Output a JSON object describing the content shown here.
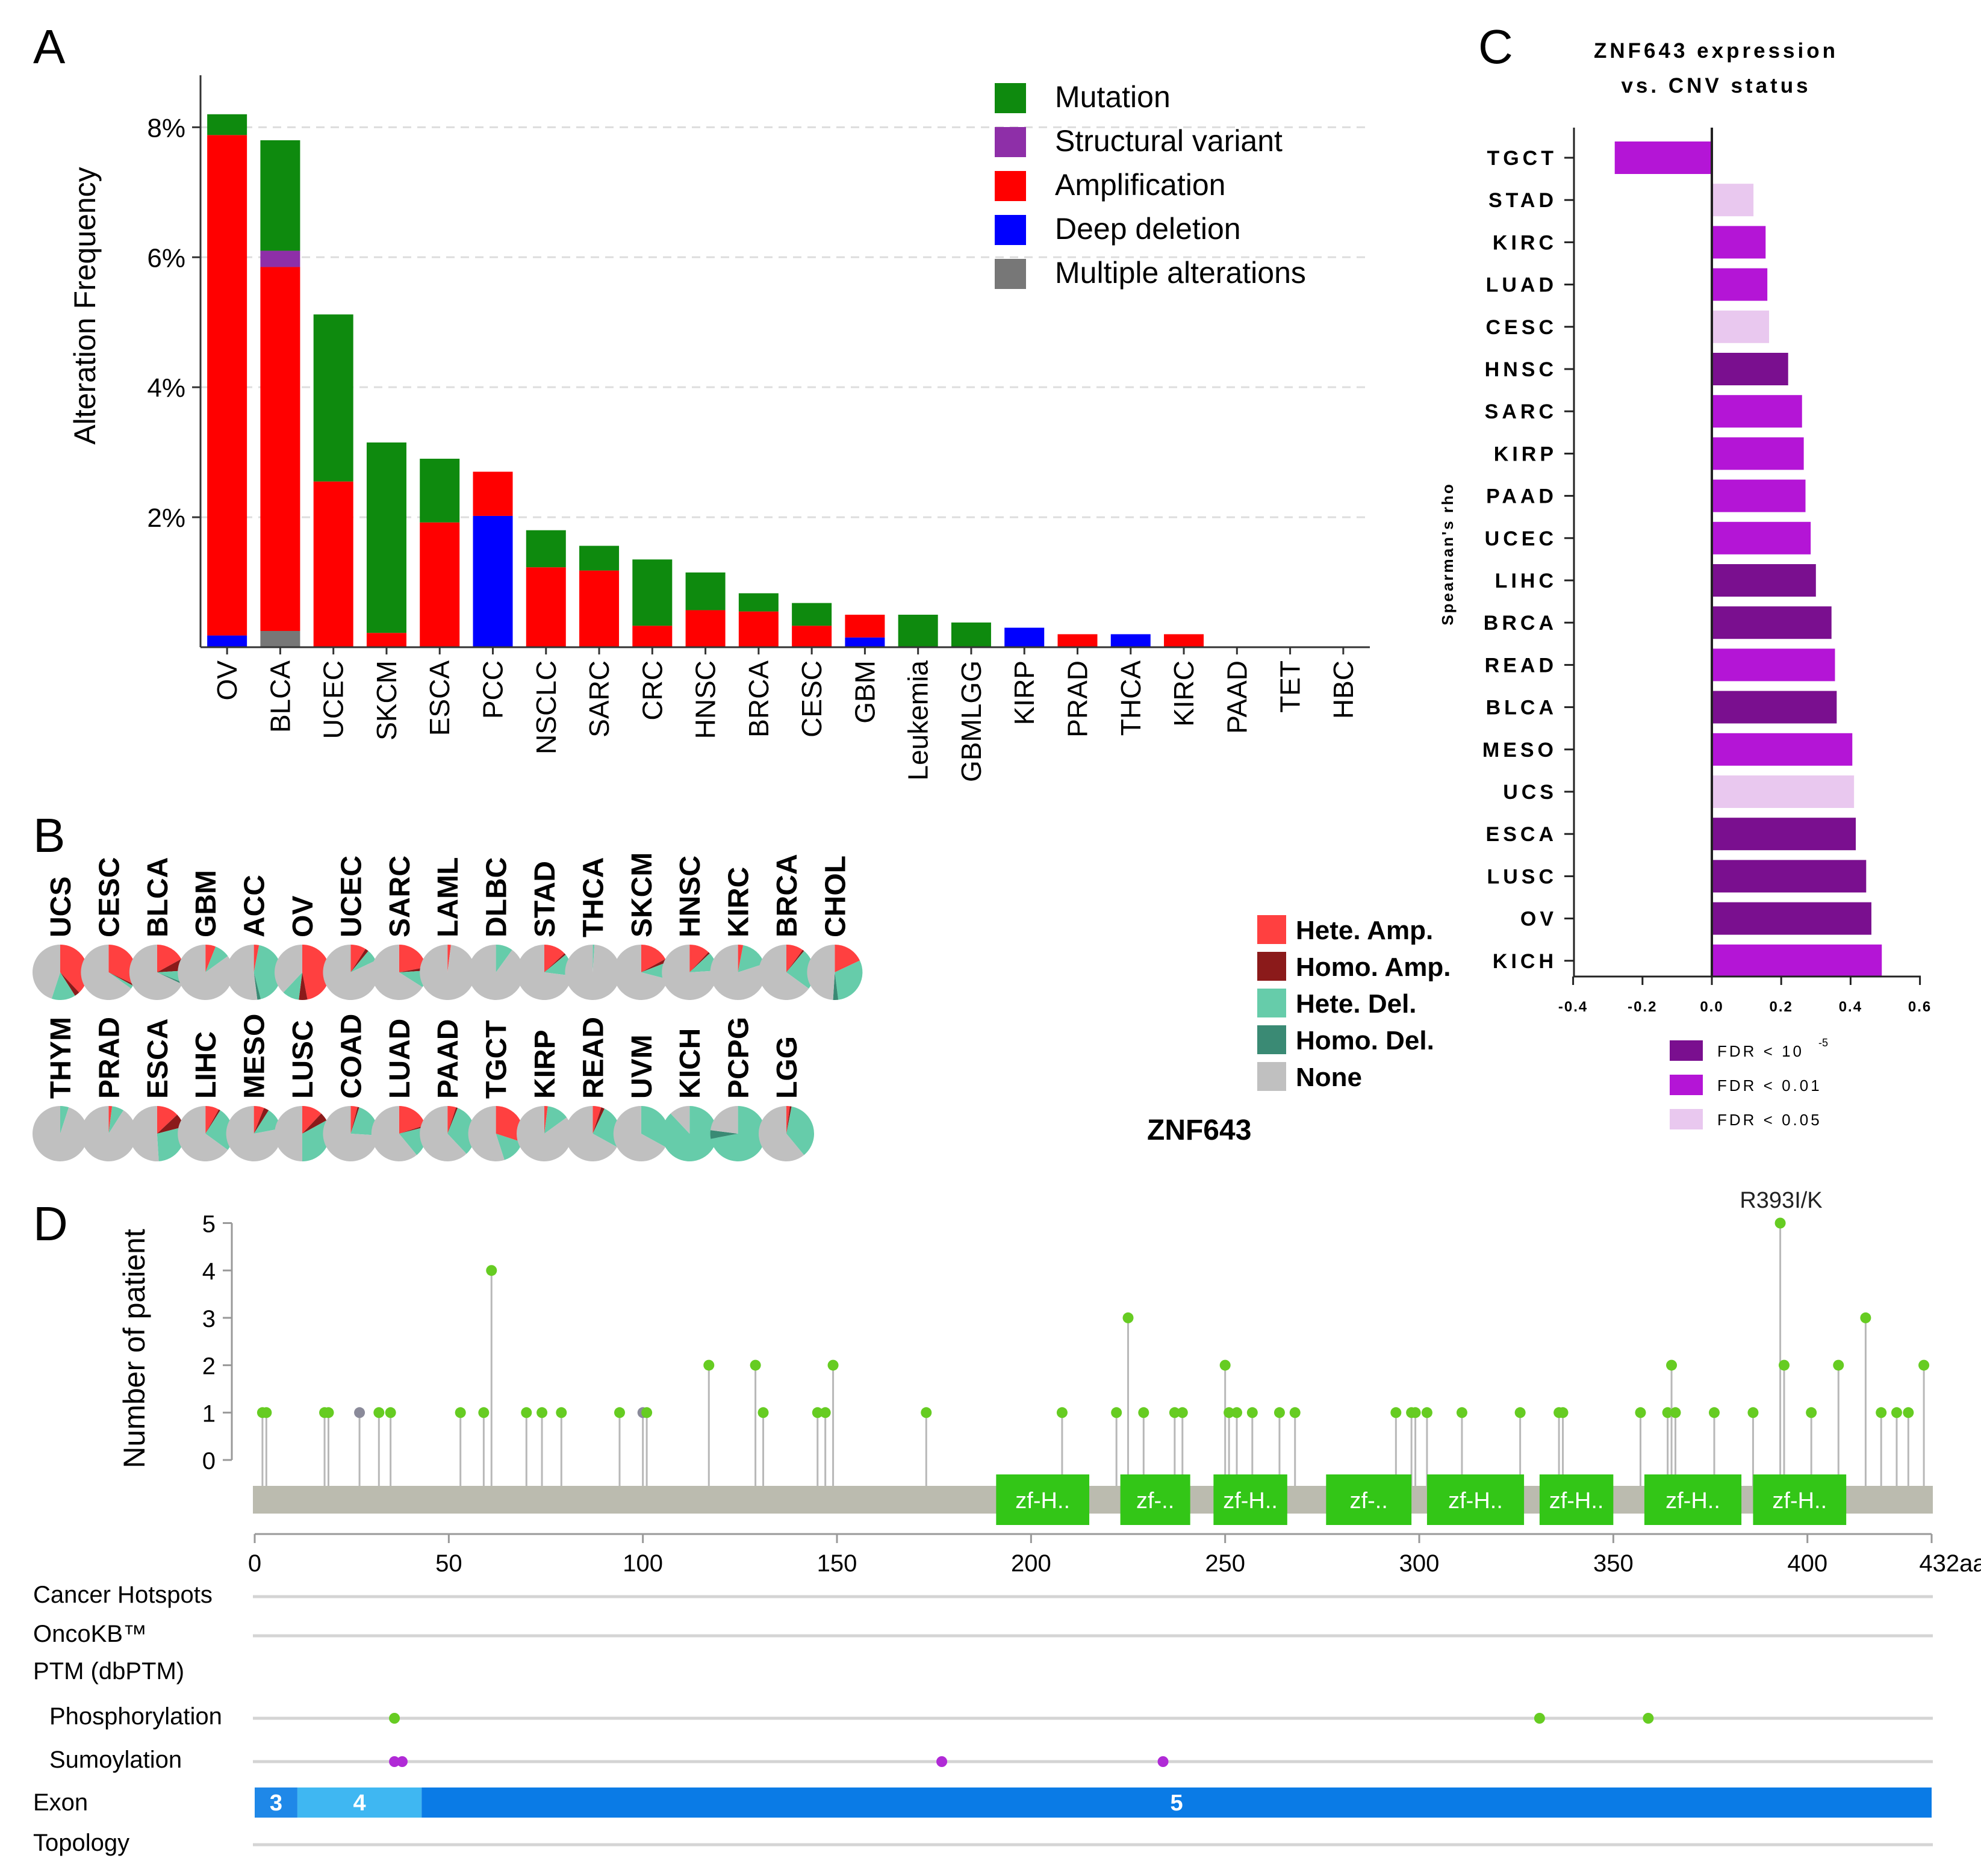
{
  "panel_letters": [
    "A",
    "B",
    "C",
    "D"
  ],
  "chart_data": [
    {
      "type": "bar",
      "panel": "A",
      "stacked": true,
      "ylabel": "Alteration Frequency",
      "yticks": [
        "2%",
        "4%",
        "6%",
        "8%"
      ],
      "ylim": [
        0,
        8.8
      ],
      "categories": [
        "OV",
        "BLCA",
        "UCEC",
        "SKCM",
        "ESCA",
        "PCC",
        "NSCLC",
        "SARC",
        "CRC",
        "HNSC",
        "BRCA",
        "CESC",
        "GBM",
        "Leukemia",
        "GBMLGG",
        "KIRP",
        "PRAD",
        "THCA",
        "KIRC",
        "PAAD",
        "TET",
        "HBC"
      ],
      "series": [
        {
          "name": "Deep deletion",
          "color": "#0000ff",
          "values": [
            0.18,
            0,
            0,
            0,
            0,
            2.02,
            0,
            0,
            0,
            0,
            0,
            0,
            0.15,
            0,
            0,
            0.3,
            0,
            0.2,
            0,
            0,
            0,
            0
          ]
        },
        {
          "name": "Multiple alterations",
          "color": "#777777",
          "values": [
            0,
            0.25,
            0,
            0,
            0,
            0,
            0,
            0,
            0,
            0,
            0,
            0,
            0,
            0,
            0,
            0,
            0,
            0,
            0,
            0,
            0,
            0
          ]
        },
        {
          "name": "Amplification",
          "color": "#ff0000",
          "values": [
            7.7,
            5.6,
            2.55,
            0.22,
            1.92,
            0.68,
            1.23,
            1.18,
            0.33,
            0.57,
            0.55,
            0.33,
            0.35,
            0,
            0,
            0,
            0.2,
            0,
            0.2,
            0,
            0,
            0
          ]
        },
        {
          "name": "Structural variant",
          "color": "#8e2fa8",
          "values": [
            0,
            0.25,
            0,
            0,
            0,
            0,
            0,
            0,
            0,
            0,
            0,
            0,
            0,
            0,
            0,
            0,
            0,
            0,
            0,
            0,
            0,
            0
          ]
        },
        {
          "name": "Mutation",
          "color": "#0e8a0e",
          "values": [
            0.32,
            1.7,
            2.57,
            2.93,
            0.98,
            0,
            0.57,
            0.38,
            1.02,
            0.58,
            0.28,
            0.35,
            0,
            0.5,
            0.38,
            0,
            0,
            0,
            0,
            0,
            0,
            0
          ]
        }
      ],
      "legend": {
        "position": "top-right",
        "items": [
          {
            "label": "Mutation",
            "color": "#0e8a0e"
          },
          {
            "label": "Structural variant",
            "color": "#8e2fa8"
          },
          {
            "label": "Amplification",
            "color": "#ff0000"
          },
          {
            "label": "Deep deletion",
            "color": "#0000ff"
          },
          {
            "label": "Multiple alterations",
            "color": "#777777"
          }
        ]
      }
    },
    {
      "type": "pie",
      "panel": "B",
      "gene_label": "ZNF643",
      "legend": [
        {
          "label": "Hete. Amp.",
          "color": "#ff4040"
        },
        {
          "label": "Homo. Amp.",
          "color": "#8b1a1a"
        },
        {
          "label": "Hete. Del.",
          "color": "#66ccaa"
        },
        {
          "label": "Homo. Del.",
          "color": "#3a8a74"
        },
        {
          "label": "None",
          "color": "#c0c0c0"
        }
      ],
      "slice_order": [
        "Hete. Amp.",
        "Homo. Amp.",
        "Hete. Del.",
        "Homo. Del.",
        "None"
      ],
      "rows": [
        [
          {
            "name": "UCS",
            "values": [
              0.38,
              0.03,
              0.14,
              0,
              0.45
            ]
          },
          {
            "name": "CESC",
            "values": [
              0.32,
              0.01,
              0.02,
              0,
              0.65
            ]
          },
          {
            "name": "BLCA",
            "values": [
              0.17,
              0.07,
              0.07,
              0.01,
              0.68
            ]
          },
          {
            "name": "GBM",
            "values": [
              0.06,
              0,
              0.09,
              0,
              0.85
            ]
          },
          {
            "name": "ACC",
            "values": [
              0.03,
              0,
              0.43,
              0.02,
              0.52
            ]
          },
          {
            "name": "OV",
            "values": [
              0.47,
              0.05,
              0.1,
              0,
              0.38
            ]
          },
          {
            "name": "UCEC",
            "values": [
              0.09,
              0.02,
              0.07,
              0,
              0.82
            ]
          },
          {
            "name": "SARC",
            "values": [
              0.22,
              0.02,
              0.1,
              0,
              0.66
            ]
          },
          {
            "name": "LAML",
            "values": [
              0.02,
              0,
              0,
              0,
              0.98
            ]
          },
          {
            "name": "DLBC",
            "values": [
              0,
              0,
              0.1,
              0,
              0.9
            ]
          },
          {
            "name": "STAD",
            "values": [
              0.13,
              0.01,
              0.13,
              0,
              0.73
            ]
          },
          {
            "name": "THCA",
            "values": [
              0,
              0,
              0.01,
              0,
              0.99
            ]
          },
          {
            "name": "SKCM",
            "values": [
              0.17,
              0.02,
              0.1,
              0,
              0.71
            ]
          },
          {
            "name": "HNSC",
            "values": [
              0.12,
              0.01,
              0.11,
              0,
              0.76
            ]
          },
          {
            "name": "KIRC",
            "values": [
              0.03,
              0,
              0.17,
              0,
              0.8
            ]
          },
          {
            "name": "BRCA",
            "values": [
              0.1,
              0.01,
              0.24,
              0,
              0.65
            ]
          },
          {
            "name": "CHOL",
            "values": [
              0.18,
              0,
              0.3,
              0.03,
              0.49
            ]
          }
        ],
        [
          {
            "name": "THYM",
            "values": [
              0,
              0,
              0.05,
              0,
              0.95
            ]
          },
          {
            "name": "PRAD",
            "values": [
              0.02,
              0,
              0.07,
              0,
              0.91
            ]
          },
          {
            "name": "ESCA",
            "values": [
              0.13,
              0.08,
              0.28,
              0,
              0.51
            ]
          },
          {
            "name": "LIHC",
            "values": [
              0.08,
              0.01,
              0.26,
              0,
              0.65
            ]
          },
          {
            "name": "MESO",
            "values": [
              0.06,
              0.03,
              0.13,
              0,
              0.78
            ]
          },
          {
            "name": "LUSC",
            "values": [
              0.12,
              0.05,
              0.33,
              0,
              0.5
            ]
          },
          {
            "name": "COAD",
            "values": [
              0.04,
              0.01,
              0.21,
              0,
              0.74
            ]
          },
          {
            "name": "LUAD",
            "values": [
              0.2,
              0.01,
              0.18,
              0,
              0.61
            ]
          },
          {
            "name": "PAAD",
            "values": [
              0.05,
              0.01,
              0.32,
              0,
              0.62
            ]
          },
          {
            "name": "TGCT",
            "values": [
              0.3,
              0,
              0.15,
              0,
              0.55
            ]
          },
          {
            "name": "KIRP",
            "values": [
              0.02,
              0,
              0.13,
              0,
              0.85
            ]
          },
          {
            "name": "READ",
            "values": [
              0.05,
              0.02,
              0.26,
              0,
              0.67
            ]
          },
          {
            "name": "UVM",
            "values": [
              0,
              0,
              0.33,
              0,
              0.67
            ]
          },
          {
            "name": "KICH",
            "values": [
              0,
              0,
              0.88,
              0,
              0.12
            ]
          },
          {
            "name": "PCPG",
            "values": [
              0,
              0,
              0.72,
              0.05,
              0.23
            ]
          },
          {
            "name": "LGG",
            "values": [
              0.02,
              0.01,
              0.36,
              0,
              0.61
            ]
          }
        ]
      ]
    },
    {
      "type": "bar",
      "panel": "C",
      "orientation": "horizontal",
      "title_lines": [
        "ZNF643 expression",
        "vs. CNV status"
      ],
      "ylabel": "Spearman's rho",
      "xlim": [
        -0.4,
        0.6
      ],
      "xticks": [
        "-0.4",
        "-0.2",
        "0.0",
        "0.2",
        "0.4",
        "0.6"
      ],
      "categories": [
        "TGCT",
        "STAD",
        "KIRC",
        "LUAD",
        "CESC",
        "HNSC",
        "SARC",
        "KIRP",
        "PAAD",
        "UCEC",
        "LIHC",
        "BRCA",
        "READ",
        "BLCA",
        "MESO",
        "UCS",
        "ESCA",
        "LUSC",
        "OV",
        "KICH"
      ],
      "values": [
        -0.28,
        0.12,
        0.155,
        0.16,
        0.165,
        0.22,
        0.26,
        0.265,
        0.27,
        0.285,
        0.3,
        0.345,
        0.355,
        0.36,
        0.405,
        0.41,
        0.415,
        0.445,
        0.46,
        0.49
      ],
      "fdr_class": [
        "0.01",
        "0.05",
        "0.01",
        "0.01",
        "0.05",
        "1e-5",
        "0.01",
        "0.01",
        "0.01",
        "0.01",
        "1e-5",
        "1e-5",
        "0.01",
        "1e-5",
        "0.01",
        "0.05",
        "1e-5",
        "1e-5",
        "1e-5",
        "0.01"
      ],
      "colors": {
        "1e-5": "#7a0f8f",
        "0.01": "#b415d6",
        "0.05": "#e9c8ef"
      },
      "legend": [
        {
          "label": "FDR < 10",
          "sup": "-5",
          "key": "1e-5"
        },
        {
          "label": "FDR < 0.01",
          "key": "0.01"
        },
        {
          "label": "FDR < 0.05",
          "key": "0.05"
        }
      ]
    },
    {
      "type": "scatter",
      "panel": "D",
      "style": "lollipop",
      "ylabel": "Number of patient",
      "yticks": [
        "0",
        "1",
        "2",
        "3",
        "4",
        "5"
      ],
      "xlim": [
        0,
        432
      ],
      "xticks": [
        "0",
        "50",
        "100",
        "150",
        "200",
        "250",
        "300",
        "350",
        "400",
        "432aa"
      ],
      "annotation": {
        "label": "R393I/K",
        "x": 393
      },
      "mutations": [
        {
          "x": 2,
          "y": 1
        },
        {
          "x": 3,
          "y": 1
        },
        {
          "x": 18,
          "y": 1
        },
        {
          "x": 19,
          "y": 1
        },
        {
          "x": 27,
          "y": 1,
          "grey": true
        },
        {
          "x": 32,
          "y": 1
        },
        {
          "x": 35,
          "y": 1
        },
        {
          "x": 53,
          "y": 1
        },
        {
          "x": 59,
          "y": 1
        },
        {
          "x": 61,
          "y": 4
        },
        {
          "x": 70,
          "y": 1
        },
        {
          "x": 74,
          "y": 1
        },
        {
          "x": 79,
          "y": 1
        },
        {
          "x": 94,
          "y": 1
        },
        {
          "x": 100,
          "y": 1,
          "grey": true
        },
        {
          "x": 101,
          "y": 1
        },
        {
          "x": 117,
          "y": 2
        },
        {
          "x": 129,
          "y": 2
        },
        {
          "x": 131,
          "y": 1
        },
        {
          "x": 145,
          "y": 1
        },
        {
          "x": 147,
          "y": 1
        },
        {
          "x": 149,
          "y": 2
        },
        {
          "x": 173,
          "y": 1
        },
        {
          "x": 208,
          "y": 1
        },
        {
          "x": 222,
          "y": 1
        },
        {
          "x": 225,
          "y": 3
        },
        {
          "x": 229,
          "y": 1
        },
        {
          "x": 237,
          "y": 1
        },
        {
          "x": 239,
          "y": 1
        },
        {
          "x": 250,
          "y": 2
        },
        {
          "x": 251,
          "y": 1
        },
        {
          "x": 253,
          "y": 1
        },
        {
          "x": 257,
          "y": 1
        },
        {
          "x": 264,
          "y": 1
        },
        {
          "x": 268,
          "y": 1
        },
        {
          "x": 294,
          "y": 1
        },
        {
          "x": 298,
          "y": 1
        },
        {
          "x": 299,
          "y": 1
        },
        {
          "x": 302,
          "y": 1
        },
        {
          "x": 311,
          "y": 1
        },
        {
          "x": 326,
          "y": 1
        },
        {
          "x": 336,
          "y": 1
        },
        {
          "x": 337,
          "y": 1
        },
        {
          "x": 357,
          "y": 1
        },
        {
          "x": 364,
          "y": 1
        },
        {
          "x": 365,
          "y": 2
        },
        {
          "x": 366,
          "y": 1
        },
        {
          "x": 376,
          "y": 1
        },
        {
          "x": 386,
          "y": 1
        },
        {
          "x": 393,
          "y": 5
        },
        {
          "x": 394,
          "y": 2
        },
        {
          "x": 401,
          "y": 1
        },
        {
          "x": 408,
          "y": 2
        },
        {
          "x": 415,
          "y": 3
        },
        {
          "x": 419,
          "y": 1
        },
        {
          "x": 423,
          "y": 1
        },
        {
          "x": 426,
          "y": 1
        },
        {
          "x": 430,
          "y": 2
        }
      ],
      "domains": [
        {
          "label": "zf-H..",
          "start": 191,
          "end": 215
        },
        {
          "label": "zf-..",
          "start": 223,
          "end": 241
        },
        {
          "label": "zf-H..",
          "start": 247,
          "end": 266
        },
        {
          "label": "zf-..",
          "start": 276,
          "end": 298
        },
        {
          "label": "zf-H..",
          "start": 302,
          "end": 327
        },
        {
          "label": "zf-H..",
          "start": 331,
          "end": 350
        },
        {
          "label": "zf-H..",
          "start": 358,
          "end": 383
        },
        {
          "label": "zf-H..",
          "start": 386,
          "end": 410
        }
      ],
      "tracks": [
        {
          "label": "Cancer Hotspots"
        },
        {
          "label": "OncoKB™"
        },
        {
          "label": "PTM (dbPTM)",
          "header": true
        },
        {
          "label": "Phosphorylation",
          "indent": true,
          "dots": [
            36,
            331,
            359
          ],
          "dot_color": "#66cc22"
        },
        {
          "label": "Sumoylation",
          "indent": true,
          "dots": [
            36,
            38,
            177,
            234
          ],
          "dot_color": "#b02ad6"
        },
        {
          "label": "Exon",
          "exons": [
            {
              "label": "3",
              "start": 0,
              "end": 11,
              "color": "#1f88e8"
            },
            {
              "label": "4",
              "start": 11,
              "end": 43,
              "color": "#3fb7f2"
            },
            {
              "label": "5",
              "start": 43,
              "end": 432,
              "color": "#0a7be6"
            }
          ]
        },
        {
          "label": "Topology"
        }
      ]
    }
  ]
}
